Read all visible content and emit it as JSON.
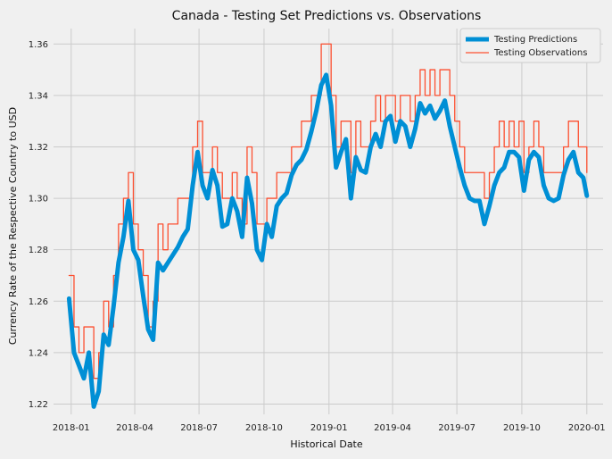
{
  "chart_data": {
    "type": "line",
    "title": "Canada - Testing Set Predictions vs. Observations",
    "xlabel": "Historical Date",
    "ylabel": "Currency Rate of the Respective Country to USD",
    "x_ticks": [
      "2018-01",
      "2018-04",
      "2018-07",
      "2018-10",
      "2019-01",
      "2019-04",
      "2019-07",
      "2019-10",
      "2020-01"
    ],
    "y_ticks": [
      "1.22",
      "1.24",
      "1.26",
      "1.28",
      "1.30",
      "1.32",
      "1.34",
      "1.36"
    ],
    "ylim": [
      1.216,
      1.366
    ],
    "xlim": [
      "2017-12-07",
      "2020-01-24"
    ],
    "grid": true,
    "legend_position": "top-right",
    "colors": {
      "predictions": "#008fd5",
      "observations": "#fc4f30",
      "background": "#f0f0f0",
      "grid": "#cbcbcb"
    },
    "series": [
      {
        "name": "Testing Predictions",
        "x": [
          "2017-12-29",
          "2018-01-05",
          "2018-01-12",
          "2018-01-19",
          "2018-01-26",
          "2018-02-02",
          "2018-02-09",
          "2018-02-16",
          "2018-02-23",
          "2018-03-02",
          "2018-03-09",
          "2018-03-16",
          "2018-03-23",
          "2018-03-30",
          "2018-04-06",
          "2018-04-13",
          "2018-04-20",
          "2018-04-27",
          "2018-05-04",
          "2018-05-11",
          "2018-05-18",
          "2018-05-25",
          "2018-06-01",
          "2018-06-08",
          "2018-06-15",
          "2018-06-22",
          "2018-06-29",
          "2018-07-06",
          "2018-07-13",
          "2018-07-20",
          "2018-07-27",
          "2018-08-03",
          "2018-08-10",
          "2018-08-17",
          "2018-08-24",
          "2018-08-31",
          "2018-09-07",
          "2018-09-14",
          "2018-09-21",
          "2018-09-28",
          "2018-10-05",
          "2018-10-12",
          "2018-10-19",
          "2018-10-26",
          "2018-11-02",
          "2018-11-09",
          "2018-11-16",
          "2018-11-23",
          "2018-11-30",
          "2018-12-07",
          "2018-12-14",
          "2018-12-21",
          "2018-12-28",
          "2019-01-04",
          "2019-01-11",
          "2019-01-18",
          "2019-01-25",
          "2019-02-01",
          "2019-02-08",
          "2019-02-15",
          "2019-02-22",
          "2019-03-01",
          "2019-03-08",
          "2019-03-15",
          "2019-03-22",
          "2019-03-29",
          "2019-04-05",
          "2019-04-12",
          "2019-04-19",
          "2019-04-26",
          "2019-05-03",
          "2019-05-10",
          "2019-05-17",
          "2019-05-24",
          "2019-05-31",
          "2019-06-07",
          "2019-06-14",
          "2019-06-21",
          "2019-06-28",
          "2019-07-05",
          "2019-07-12",
          "2019-07-19",
          "2019-07-26",
          "2019-08-02",
          "2019-08-09",
          "2019-08-16",
          "2019-08-23",
          "2019-08-30",
          "2019-09-06",
          "2019-09-13",
          "2019-09-20",
          "2019-09-27",
          "2019-10-04",
          "2019-10-11",
          "2019-10-18",
          "2019-10-25",
          "2019-11-01",
          "2019-11-08",
          "2019-11-15",
          "2019-11-22",
          "2019-11-29",
          "2019-12-06",
          "2019-12-13",
          "2019-12-20",
          "2019-12-27",
          "2020-01-01"
        ],
        "values": [
          1.261,
          1.24,
          1.235,
          1.23,
          1.24,
          1.219,
          1.225,
          1.247,
          1.243,
          1.258,
          1.275,
          1.285,
          1.299,
          1.28,
          1.276,
          1.262,
          1.249,
          1.245,
          1.275,
          1.272,
          1.275,
          1.278,
          1.281,
          1.285,
          1.288,
          1.305,
          1.318,
          1.305,
          1.3,
          1.311,
          1.305,
          1.289,
          1.29,
          1.3,
          1.295,
          1.285,
          1.308,
          1.298,
          1.28,
          1.276,
          1.29,
          1.285,
          1.297,
          1.3,
          1.302,
          1.309,
          1.313,
          1.315,
          1.319,
          1.326,
          1.334,
          1.344,
          1.348,
          1.336,
          1.312,
          1.318,
          1.323,
          1.3,
          1.316,
          1.311,
          1.31,
          1.32,
          1.325,
          1.32,
          1.33,
          1.332,
          1.322,
          1.33,
          1.328,
          1.32,
          1.327,
          1.337,
          1.333,
          1.336,
          1.331,
          1.334,
          1.338,
          1.328,
          1.32,
          1.312,
          1.305,
          1.3,
          1.299,
          1.299,
          1.29,
          1.297,
          1.305,
          1.31,
          1.312,
          1.318,
          1.318,
          1.316,
          1.303,
          1.315,
          1.318,
          1.316,
          1.305,
          1.3,
          1.299,
          1.3,
          1.309,
          1.315,
          1.318,
          1.31,
          1.308,
          1.301
        ]
      },
      {
        "name": "Testing Observations",
        "x": [
          "2017-12-29",
          "2018-01-05",
          "2018-01-12",
          "2018-01-19",
          "2018-01-26",
          "2018-02-02",
          "2018-02-09",
          "2018-02-16",
          "2018-02-23",
          "2018-03-02",
          "2018-03-09",
          "2018-03-16",
          "2018-03-23",
          "2018-03-30",
          "2018-04-06",
          "2018-04-13",
          "2018-04-20",
          "2018-04-27",
          "2018-05-04",
          "2018-05-11",
          "2018-05-18",
          "2018-05-25",
          "2018-06-01",
          "2018-06-08",
          "2018-06-15",
          "2018-06-22",
          "2018-06-29",
          "2018-07-06",
          "2018-07-13",
          "2018-07-20",
          "2018-07-27",
          "2018-08-03",
          "2018-08-10",
          "2018-08-17",
          "2018-08-24",
          "2018-08-31",
          "2018-09-07",
          "2018-09-14",
          "2018-09-21",
          "2018-09-28",
          "2018-10-05",
          "2018-10-12",
          "2018-10-19",
          "2018-10-26",
          "2018-11-02",
          "2018-11-09",
          "2018-11-16",
          "2018-11-23",
          "2018-11-30",
          "2018-12-07",
          "2018-12-14",
          "2018-12-21",
          "2018-12-28",
          "2019-01-04",
          "2019-01-11",
          "2019-01-18",
          "2019-01-25",
          "2019-02-01",
          "2019-02-08",
          "2019-02-15",
          "2019-02-22",
          "2019-03-01",
          "2019-03-08",
          "2019-03-15",
          "2019-03-22",
          "2019-03-29",
          "2019-04-05",
          "2019-04-12",
          "2019-04-19",
          "2019-04-26",
          "2019-05-03",
          "2019-05-10",
          "2019-05-17",
          "2019-05-24",
          "2019-05-31",
          "2019-06-07",
          "2019-06-14",
          "2019-06-21",
          "2019-06-28",
          "2019-07-05",
          "2019-07-12",
          "2019-07-19",
          "2019-07-26",
          "2019-08-02",
          "2019-08-09",
          "2019-08-16",
          "2019-08-23",
          "2019-08-30",
          "2019-09-06",
          "2019-09-13",
          "2019-09-20",
          "2019-09-27",
          "2019-10-04",
          "2019-10-11",
          "2019-10-18",
          "2019-10-25",
          "2019-11-01",
          "2019-11-08",
          "2019-11-15",
          "2019-11-22",
          "2019-11-29",
          "2019-12-06",
          "2019-12-13",
          "2019-12-20",
          "2019-12-27",
          "2020-01-01"
        ],
        "values": [
          1.27,
          1.25,
          1.24,
          1.25,
          1.25,
          1.23,
          1.24,
          1.26,
          1.25,
          1.27,
          1.29,
          1.3,
          1.31,
          1.29,
          1.28,
          1.27,
          1.25,
          1.26,
          1.29,
          1.28,
          1.29,
          1.29,
          1.3,
          1.3,
          1.3,
          1.32,
          1.33,
          1.31,
          1.31,
          1.32,
          1.31,
          1.3,
          1.3,
          1.31,
          1.3,
          1.29,
          1.32,
          1.31,
          1.29,
          1.29,
          1.3,
          1.3,
          1.31,
          1.31,
          1.31,
          1.32,
          1.32,
          1.33,
          1.33,
          1.34,
          1.34,
          1.36,
          1.36,
          1.34,
          1.32,
          1.33,
          1.33,
          1.31,
          1.33,
          1.32,
          1.32,
          1.33,
          1.34,
          1.33,
          1.34,
          1.34,
          1.33,
          1.34,
          1.34,
          1.33,
          1.34,
          1.35,
          1.34,
          1.35,
          1.34,
          1.35,
          1.35,
          1.34,
          1.33,
          1.32,
          1.31,
          1.31,
          1.31,
          1.31,
          1.3,
          1.31,
          1.32,
          1.33,
          1.32,
          1.33,
          1.32,
          1.33,
          1.31,
          1.32,
          1.33,
          1.32,
          1.31,
          1.31,
          1.31,
          1.31,
          1.32,
          1.33,
          1.33,
          1.32,
          1.32,
          1.31
        ]
      }
    ]
  }
}
